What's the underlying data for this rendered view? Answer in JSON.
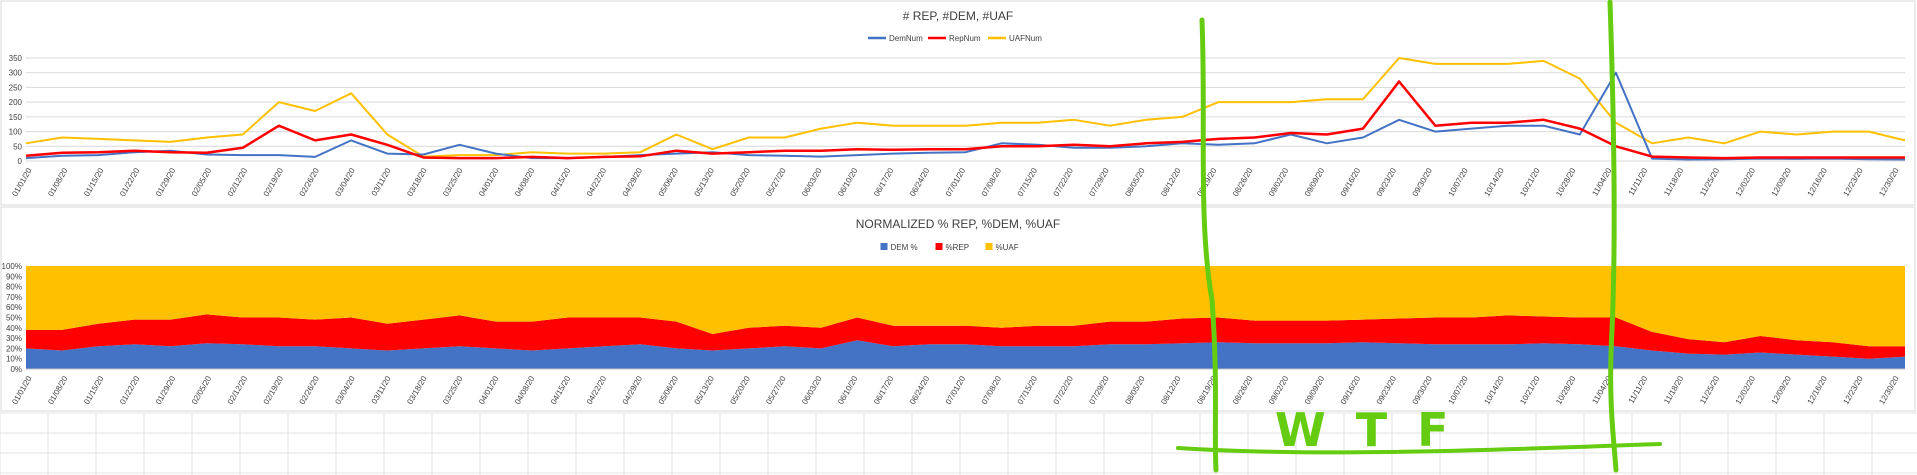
{
  "colors": {
    "dem": "#4472c4",
    "rep": "#ff0000",
    "uaf": "#ffc000",
    "annotation": "#66cc11",
    "grid": "#d9d9d9"
  },
  "annotation": {
    "text": "WTF"
  },
  "chart_data": [
    {
      "type": "line",
      "title": "# REP, #DEM, #UAF",
      "legend": [
        "DemNum",
        "RepNum",
        "UAFNum"
      ],
      "legend_position": "top-center",
      "ylim": [
        0,
        350
      ],
      "yticks": [
        "0",
        "50",
        "100",
        "150",
        "200",
        "250",
        "300",
        "350"
      ],
      "x_tick_labels": [
        "01/01/20",
        "01/08/20",
        "01/15/20",
        "01/22/20",
        "01/29/20",
        "02/05/20",
        "02/12/20",
        "02/19/20",
        "02/26/20",
        "03/04/20",
        "03/11/20",
        "03/18/20",
        "03/25/20",
        "04/01/20",
        "04/08/20",
        "04/15/20",
        "04/22/20",
        "04/29/20",
        "05/06/20",
        "05/13/20",
        "05/20/20",
        "05/27/20",
        "06/03/20",
        "06/10/20",
        "06/17/20",
        "06/24/20",
        "07/01/20",
        "07/08/20",
        "07/15/20",
        "07/22/20",
        "07/29/20",
        "08/05/20",
        "08/12/20",
        "08/19/20",
        "08/26/20",
        "09/02/20",
        "09/09/20",
        "09/16/20",
        "09/23/20",
        "09/30/20",
        "10/07/20",
        "10/14/20",
        "10/21/20",
        "10/28/20",
        "11/04/20",
        "11/11/20",
        "11/18/20",
        "11/25/20",
        "12/02/20",
        "12/09/20",
        "12/16/20",
        "12/23/20",
        "12/30/20"
      ],
      "series": [
        {
          "name": "DemNum",
          "values": [
            10,
            18,
            20,
            30,
            35,
            22,
            20,
            20,
            14,
            70,
            25,
            22,
            55,
            25,
            10,
            10,
            14,
            20,
            25,
            30,
            20,
            18,
            15,
            20,
            25,
            28,
            30,
            60,
            55,
            45,
            45,
            50,
            60,
            55,
            60,
            90,
            60,
            80,
            140,
            100,
            110,
            120,
            120,
            90,
            300,
            8,
            5,
            6,
            8,
            7,
            8,
            6,
            5
          ]
        },
        {
          "name": "RepNum",
          "values": [
            18,
            28,
            30,
            35,
            30,
            28,
            45,
            120,
            70,
            90,
            55,
            12,
            10,
            10,
            14,
            10,
            14,
            16,
            35,
            25,
            30,
            35,
            35,
            40,
            38,
            40,
            40,
            50,
            50,
            55,
            50,
            60,
            65,
            75,
            80,
            95,
            90,
            110,
            270,
            120,
            130,
            130,
            140,
            110,
            50,
            15,
            12,
            10,
            12,
            12,
            12,
            12,
            12
          ]
        },
        {
          "name": "UAFNum",
          "values": [
            60,
            80,
            75,
            70,
            65,
            80,
            90,
            200,
            170,
            230,
            90,
            15,
            20,
            20,
            30,
            25,
            25,
            30,
            90,
            40,
            80,
            80,
            110,
            130,
            120,
            120,
            120,
            130,
            130,
            140,
            120,
            140,
            150,
            200,
            200,
            200,
            210,
            210,
            350,
            330,
            330,
            330,
            340,
            280,
            130,
            60,
            80,
            60,
            100,
            90,
            100,
            100,
            70
          ]
        }
      ]
    },
    {
      "type": "area",
      "stacked": "percent",
      "title": "NORMALIZED % REP, %DEM, %UAF",
      "legend": [
        "DEM %",
        "%REP",
        "%UAF"
      ],
      "legend_position": "top-center",
      "ylim": [
        0,
        100
      ],
      "yticks": [
        "0%",
        "10%",
        "20%",
        "30%",
        "40%",
        "50%",
        "60%",
        "70%",
        "80%",
        "90%",
        "100%"
      ],
      "x_tick_labels": [
        "01/01/20",
        "01/08/20",
        "01/15/20",
        "01/22/20",
        "01/29/20",
        "02/05/20",
        "02/12/20",
        "02/19/20",
        "02/26/20",
        "03/04/20",
        "03/11/20",
        "03/18/20",
        "03/25/20",
        "04/01/20",
        "04/08/20",
        "04/15/20",
        "04/22/20",
        "04/29/20",
        "05/06/20",
        "05/13/20",
        "05/20/20",
        "05/27/20",
        "06/03/20",
        "06/10/20",
        "06/17/20",
        "06/24/20",
        "07/01/20",
        "07/08/20",
        "07/15/20",
        "07/22/20",
        "07/29/20",
        "08/05/20",
        "08/12/20",
        "08/19/20",
        "08/26/20",
        "09/02/20",
        "09/09/20",
        "09/16/20",
        "09/23/20",
        "09/30/20",
        "10/07/20",
        "10/14/20",
        "10/21/20",
        "10/28/20",
        "11/04/20",
        "11/11/20",
        "11/18/20",
        "11/25/20",
        "12/02/20",
        "12/09/20",
        "12/16/20",
        "12/23/20",
        "12/30/20"
      ],
      "series": [
        {
          "name": "DEM %",
          "values": [
            20,
            18,
            22,
            24,
            22,
            25,
            24,
            22,
            22,
            20,
            18,
            20,
            22,
            20,
            18,
            20,
            22,
            24,
            20,
            18,
            20,
            22,
            20,
            28,
            22,
            24,
            24,
            22,
            22,
            22,
            24,
            24,
            25,
            26,
            25,
            25,
            25,
            26,
            25,
            24,
            24,
            24,
            25,
            24,
            22,
            18,
            15,
            14,
            16,
            14,
            12,
            10,
            12
          ]
        },
        {
          "name": "%REP",
          "values": [
            18,
            20,
            22,
            24,
            26,
            28,
            26,
            28,
            26,
            30,
            26,
            28,
            30,
            26,
            28,
            30,
            28,
            26,
            26,
            16,
            20,
            20,
            20,
            22,
            20,
            18,
            18,
            18,
            20,
            20,
            22,
            22,
            24,
            24,
            22,
            22,
            22,
            22,
            24,
            26,
            26,
            28,
            26,
            26,
            28,
            18,
            14,
            12,
            16,
            14,
            14,
            12,
            10
          ]
        },
        {
          "name": "%UAF",
          "values": [
            62,
            62,
            56,
            52,
            52,
            47,
            50,
            50,
            52,
            50,
            56,
            52,
            48,
            54,
            54,
            50,
            50,
            50,
            54,
            66,
            60,
            58,
            60,
            50,
            58,
            58,
            58,
            60,
            58,
            58,
            54,
            54,
            51,
            50,
            53,
            53,
            53,
            52,
            51,
            50,
            50,
            48,
            49,
            50,
            50,
            64,
            71,
            74,
            68,
            72,
            74,
            78,
            78
          ]
        }
      ]
    }
  ]
}
